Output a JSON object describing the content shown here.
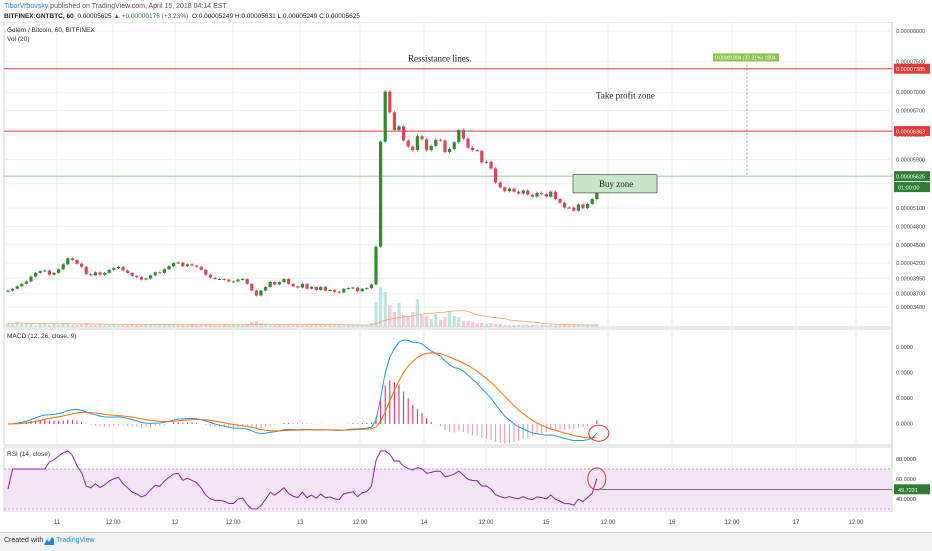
{
  "header": {
    "user": "TiborVrbovsky",
    "published": "published on TradingView.com, April 15, 2018 04:14 EST",
    "symbol": "BITFINEX:GNTBTC, 60",
    "last": "0.00005625",
    "change": "▲ +0.00000176 (+3.23%)",
    "ohlc": "O:0.00005249 H:0.00005631 L:0.00005249 C:0.00005625"
  },
  "footer": {
    "created": "Created with",
    "brand": "TradingView"
  },
  "colors": {
    "up": "#26a69a",
    "down": "#ef5350",
    "bull_body": "#2e8b2e",
    "bear_body": "#e0445a",
    "macd": "#2196f3",
    "signal": "#ff6d00",
    "rsi": "#8e24aa",
    "resistance": "#e53935",
    "support": "#66bb6a"
  },
  "chart_data": [
    {
      "type": "candlestick",
      "title": "Golem / Bitcoin, 60, BITFINEX",
      "volume_label": "Vol (20)",
      "yticks": [
        "0.00008000",
        "0.00007500",
        "0.00007000",
        "0.00006700",
        "0.00006300",
        "0.00005900",
        "0.00005500",
        "0.00005100",
        "0.00004800",
        "0.00004500",
        "0.00004200",
        "0.00003950",
        "0.00003700",
        "0.00003480"
      ],
      "ylim": [
        3.35e-05,
        8.15e-05
      ],
      "xticks": [
        "11",
        "12:00",
        "12",
        "12:00",
        "13",
        "12:00",
        "14",
        "12:00",
        "15",
        "12:00",
        "16",
        "12:00",
        "17",
        "12:00"
      ],
      "price_labels": {
        "resistance_top": "0.00007385",
        "resistance_mid": "0.00006363",
        "last": "0.00005625",
        "countdown": "01:00:00"
      },
      "resistance_levels": [
        7.385e-05,
        6.363e-05
      ],
      "support_level": 5.625e-05,
      "annotations": {
        "resistance": "Ressistance lines.",
        "take_profit": "Take profit zone",
        "buy": "Buy zone",
        "measure": "0.00001804 (32.31%) 1804"
      },
      "closes": [
        3.75e-05,
        3.78e-05,
        3.82e-05,
        3.86e-05,
        3.9e-05,
        3.98e-05,
        4.04e-05,
        4.07e-05,
        4.08e-05,
        4.01e-05,
        4.04e-05,
        4.1e-05,
        4.18e-05,
        4.28e-05,
        4.25e-05,
        4.19e-05,
        4.14e-05,
        4.02e-05,
        4e-05,
        4.05e-05,
        4.01e-05,
        4.04e-05,
        4.09e-05,
        4.12e-05,
        4.14e-05,
        4.08e-05,
        4.04e-05,
        3.99e-05,
        3.97e-05,
        3.93e-05,
        3.95e-05,
        4e-05,
        4.05e-05,
        4.04e-05,
        4.1e-05,
        4.15e-05,
        4.2e-05,
        4.21e-05,
        4.15e-05,
        4.18e-05,
        4.16e-05,
        4.14e-05,
        4.09e-05,
        4.01e-05,
        3.96e-05,
        3.94e-05,
        3.94e-05,
        3.93e-05,
        3.9e-05,
        3.9e-05,
        3.93e-05,
        3.94e-05,
        3.86e-05,
        3.75e-05,
        3.67e-05,
        3.75e-05,
        3.81e-05,
        3.89e-05,
        3.85e-05,
        3.89e-05,
        3.94e-05,
        3.86e-05,
        3.82e-05,
        3.8e-05,
        3.86e-05,
        3.78e-05,
        3.81e-05,
        3.76e-05,
        3.81e-05,
        3.75e-05,
        3.76e-05,
        3.73e-05,
        3.72e-05,
        3.78e-05,
        3.79e-05,
        3.8e-05,
        3.74e-05,
        3.78e-05,
        3.79e-05,
        3.85e-05,
        4.47e-05,
        6.19e-05,
        7.01e-05,
        6.67e-05,
        6.38e-05,
        6.44e-05,
        6.21e-05,
        6.11e-05,
        6.05e-05,
        6.28e-05,
        6.23e-05,
        6.05e-05,
        6.12e-05,
        6.22e-05,
        6.21e-05,
        6.02e-05,
        6.07e-05,
        6.18e-05,
        6.38e-05,
        6.24e-05,
        6.09e-05,
        6.05e-05,
        6.04e-05,
        5.85e-05,
        5.86e-05,
        5.75e-05,
        5.52e-05,
        5.44e-05,
        5.38e-05,
        5.42e-05,
        5.37e-05,
        5.34e-05,
        5.39e-05,
        5.32e-05,
        5.29e-05,
        5.35e-05,
        5.33e-05,
        5.29e-05,
        5.37e-05,
        5.25e-05,
        5.19e-05,
        5.11e-05,
        5.11e-05,
        5.06e-05,
        5.16e-05,
        5.1e-05,
        5.17e-05,
        5.25e-05,
        5.62e-05
      ],
      "volume": [
        0.4,
        0.3,
        0.5,
        0.3,
        0.4,
        0.3,
        0.2,
        0.3,
        0.4,
        0.2,
        0.3,
        0.2,
        0.4,
        0.3,
        0.2,
        0.2,
        0.3,
        0.4,
        0.2,
        0.2,
        0.3,
        0.2,
        0.2,
        0.3,
        0.2,
        0.2,
        0.2,
        0.3,
        0.2,
        0.2,
        0.2,
        0.3,
        0.2,
        0.2,
        0.2,
        0.3,
        0.2,
        0.2,
        0.2,
        0.2,
        0.3,
        0.2,
        0.2,
        0.2,
        0.3,
        0.2,
        0.2,
        0.3,
        0.2,
        0.2,
        0.2,
        0.2,
        0.3,
        0.5,
        0.6,
        0.4,
        0.3,
        0.2,
        0.2,
        0.2,
        0.2,
        0.2,
        0.2,
        0.2,
        0.2,
        0.2,
        0.2,
        0.2,
        0.2,
        0.2,
        0.2,
        0.2,
        0.2,
        0.2,
        0.2,
        0.2,
        0.2,
        0.2,
        0.2,
        0.4,
        2.5,
        4.0,
        3.5,
        2.2,
        1.5,
        2.4,
        1.2,
        1.0,
        1.5,
        2.8,
        1.2,
        1.1,
        0.8,
        1.3,
        0.7,
        1.0,
        1.6,
        1.1,
        1.0,
        0.6,
        0.6,
        0.5,
        0.4,
        0.4,
        0.3,
        0.4,
        0.3,
        0.3,
        0.2,
        0.2,
        0.2,
        0.2,
        0.2,
        0.2,
        0.2,
        0.2,
        0.2,
        0.2,
        0.2,
        0.2,
        0.2,
        0.2,
        0.2,
        0.2,
        0.2,
        0.2,
        0.2,
        0.2,
        0.3
      ]
    },
    {
      "type": "line",
      "title": "MACD (12, 26, close, 9)",
      "yticks": [
        "0.0000",
        "0.0000",
        "0.0000",
        "0.0000"
      ]
    },
    {
      "type": "line",
      "title": "RSI (14, close)",
      "yticks": [
        "80.0000",
        "60.0000",
        "40.0000"
      ],
      "ylim": [
        30,
        90
      ],
      "rsi_label": "49.7231",
      "rsi_level": 49.7231
    }
  ]
}
